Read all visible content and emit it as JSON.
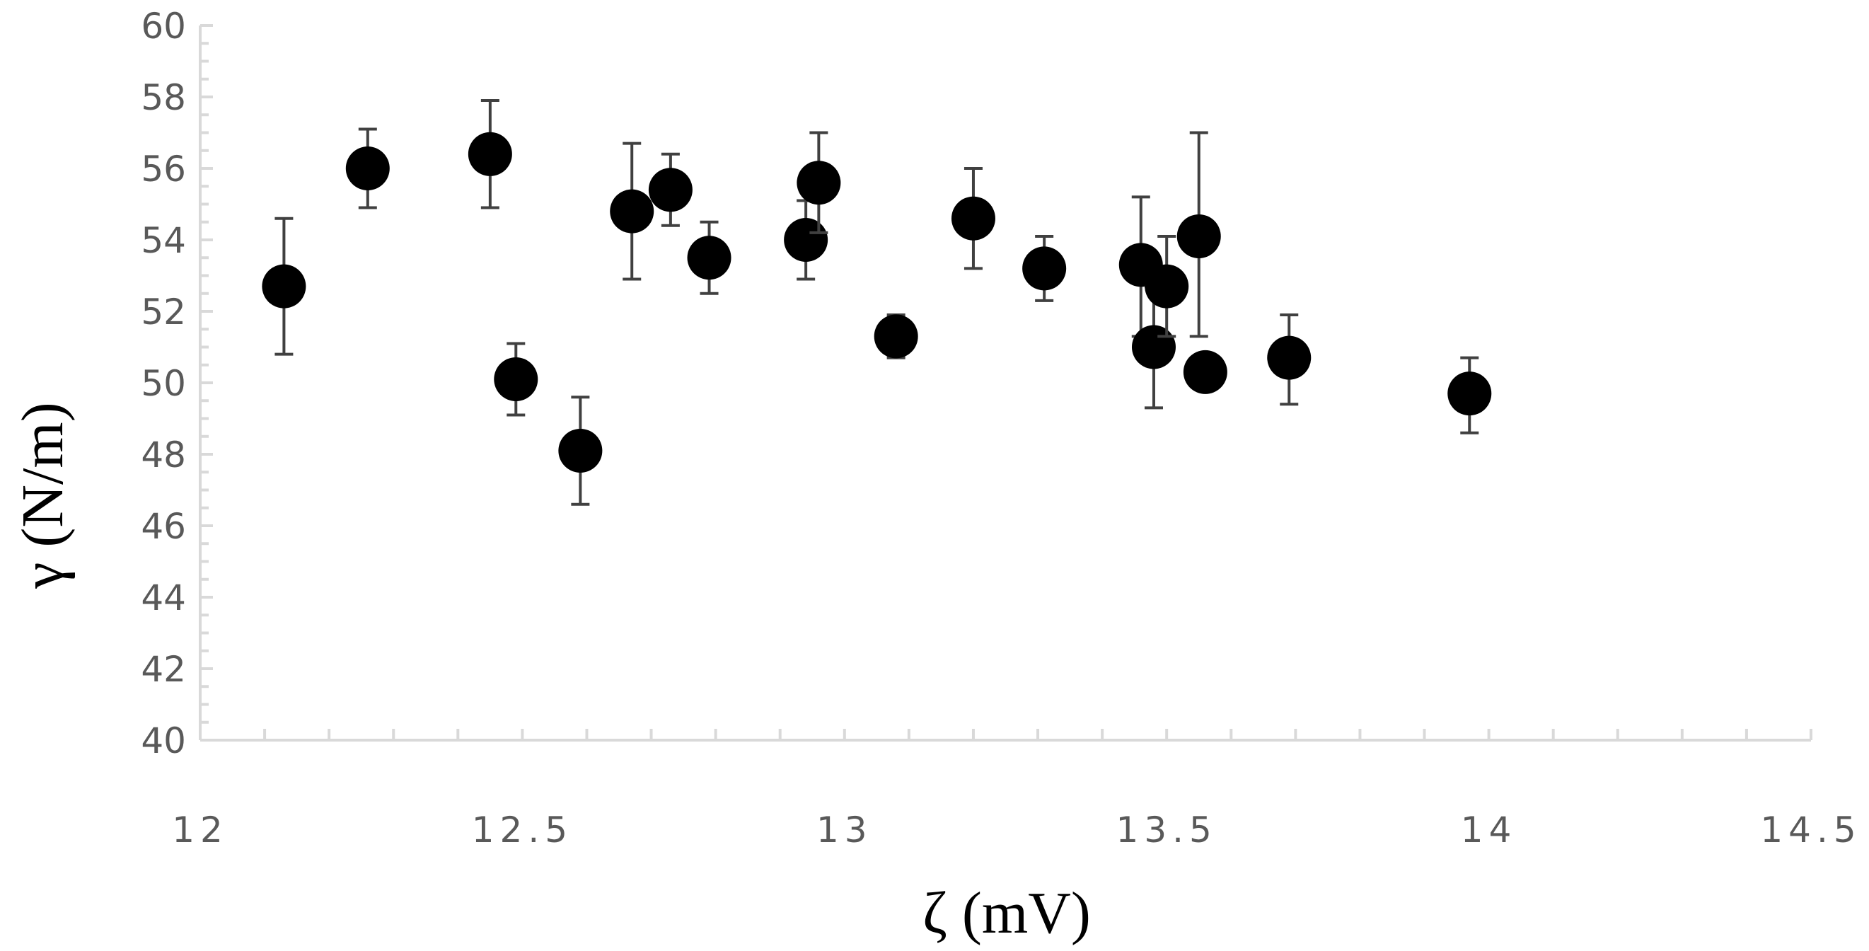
{
  "chart_data": {
    "type": "scatter",
    "xlabel": "ζ (mV)",
    "ylabel": "γ (N/m)",
    "xlim": [
      12,
      14.5
    ],
    "ylim": [
      40,
      60
    ],
    "x_ticks": [
      "12",
      "12.5",
      "13",
      "13.5",
      "14",
      "14.5"
    ],
    "y_ticks": [
      "40",
      "42",
      "44",
      "46",
      "48",
      "50",
      "52",
      "54",
      "56",
      "58",
      "60"
    ],
    "grid": false,
    "legend": "none",
    "marker_color": "#000000",
    "errorbar_color": "#404040",
    "axis_color": "#d9d9d9",
    "points": [
      {
        "x": 12.13,
        "y": 52.7,
        "yerr_low": 50.8,
        "yerr_high": 54.6
      },
      {
        "x": 12.26,
        "y": 56.0,
        "yerr_low": 54.9,
        "yerr_high": 57.1
      },
      {
        "x": 12.45,
        "y": 56.4,
        "yerr_low": 54.9,
        "yerr_high": 57.9
      },
      {
        "x": 12.49,
        "y": 50.1,
        "yerr_low": 49.1,
        "yerr_high": 51.1
      },
      {
        "x": 12.59,
        "y": 48.1,
        "yerr_low": 46.6,
        "yerr_high": 49.6
      },
      {
        "x": 12.67,
        "y": 54.8,
        "yerr_low": 52.9,
        "yerr_high": 56.7
      },
      {
        "x": 12.73,
        "y": 55.4,
        "yerr_low": 54.4,
        "yerr_high": 56.4
      },
      {
        "x": 12.79,
        "y": 53.5,
        "yerr_low": 52.5,
        "yerr_high": 54.5
      },
      {
        "x": 12.94,
        "y": 54.0,
        "yerr_low": 52.9,
        "yerr_high": 55.1
      },
      {
        "x": 12.96,
        "y": 55.6,
        "yerr_low": 54.2,
        "yerr_high": 57.0
      },
      {
        "x": 13.08,
        "y": 51.3,
        "yerr_low": 50.7,
        "yerr_high": 51.9
      },
      {
        "x": 13.2,
        "y": 54.6,
        "yerr_low": 53.2,
        "yerr_high": 56.0
      },
      {
        "x": 13.31,
        "y": 53.2,
        "yerr_low": 52.3,
        "yerr_high": 54.1
      },
      {
        "x": 13.46,
        "y": 53.3,
        "yerr_low": 51.3,
        "yerr_high": 55.2
      },
      {
        "x": 13.48,
        "y": 51.0,
        "yerr_low": 49.3,
        "yerr_high": 52.7
      },
      {
        "x": 13.5,
        "y": 52.7,
        "yerr_low": 51.3,
        "yerr_high": 54.1
      },
      {
        "x": 13.55,
        "y": 54.1,
        "yerr_low": 51.3,
        "yerr_high": 57.0
      },
      {
        "x": 13.56,
        "y": 50.3,
        "yerr_low": 50.0,
        "yerr_high": 50.6
      },
      {
        "x": 13.69,
        "y": 50.7,
        "yerr_low": 49.4,
        "yerr_high": 51.9
      },
      {
        "x": 13.97,
        "y": 49.7,
        "yerr_low": 48.6,
        "yerr_high": 50.7
      }
    ]
  }
}
